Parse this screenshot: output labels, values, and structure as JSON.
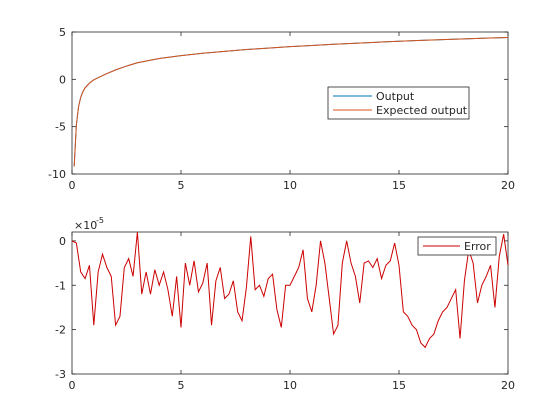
{
  "chart_data": [
    {
      "type": "line",
      "title": "",
      "xlabel": "",
      "ylabel": "",
      "xlim": [
        0,
        20
      ],
      "ylim": [
        -10,
        5
      ],
      "xticks": [
        0,
        5,
        10,
        15,
        20
      ],
      "yticks": [
        -10,
        -5,
        0,
        5
      ],
      "grid": false,
      "legend": {
        "placement": "right-center",
        "entries": [
          "Output",
          "Expected output"
        ]
      },
      "series": [
        {
          "name": "Output",
          "color": "#0072BD",
          "x": [
            0.1,
            0.2,
            0.3,
            0.4,
            0.5,
            0.6,
            0.8,
            1.0,
            1.5,
            2.0,
            2.5,
            3.0,
            4.0,
            5.0,
            6.0,
            7.0,
            8.0,
            9.0,
            10.0,
            11.0,
            12.0,
            13.0,
            14.0,
            15.0,
            16.0,
            17.0,
            18.0,
            19.0,
            20.0
          ],
          "y": [
            -9.2,
            -4.8,
            -2.9,
            -1.9,
            -1.3,
            -0.9,
            -0.4,
            -0.05,
            0.5,
            1.0,
            1.4,
            1.75,
            2.2,
            2.5,
            2.75,
            2.95,
            3.15,
            3.3,
            3.45,
            3.58,
            3.7,
            3.81,
            3.92,
            4.02,
            4.11,
            4.19,
            4.27,
            4.35,
            4.42
          ]
        },
        {
          "name": "Expected output",
          "color": "#D95319",
          "x": [
            0.1,
            0.2,
            0.3,
            0.4,
            0.5,
            0.6,
            0.8,
            1.0,
            1.5,
            2.0,
            2.5,
            3.0,
            4.0,
            5.0,
            6.0,
            7.0,
            8.0,
            9.0,
            10.0,
            11.0,
            12.0,
            13.0,
            14.0,
            15.0,
            16.0,
            17.0,
            18.0,
            19.0,
            20.0
          ],
          "y": [
            -9.2,
            -4.8,
            -2.9,
            -1.9,
            -1.3,
            -0.9,
            -0.4,
            -0.05,
            0.5,
            1.0,
            1.4,
            1.75,
            2.2,
            2.5,
            2.75,
            2.95,
            3.15,
            3.3,
            3.45,
            3.58,
            3.7,
            3.81,
            3.92,
            4.02,
            4.11,
            4.19,
            4.27,
            4.35,
            4.42
          ]
        }
      ]
    },
    {
      "type": "line",
      "title": "",
      "xlabel": "",
      "ylabel": "",
      "xlim": [
        0,
        20
      ],
      "ylim": [
        -3,
        0.2
      ],
      "xticks": [
        0,
        5,
        10,
        15,
        20
      ],
      "yticks": [
        -3,
        -2,
        -1,
        0
      ],
      "y_exponent": "×10",
      "y_exponent_power": "-5",
      "grid": false,
      "legend": {
        "placement": "top-right",
        "entries": [
          "Error"
        ]
      },
      "series": [
        {
          "name": "Error",
          "color": "#CC0000",
          "x": [
            0.0,
            0.2,
            0.4,
            0.6,
            0.8,
            1.0,
            1.2,
            1.4,
            1.6,
            1.8,
            2.0,
            2.2,
            2.4,
            2.6,
            2.8,
            3.0,
            3.2,
            3.4,
            3.6,
            3.8,
            4.0,
            4.2,
            4.4,
            4.6,
            4.8,
            5.0,
            5.2,
            5.4,
            5.6,
            5.8,
            6.0,
            6.2,
            6.4,
            6.6,
            6.8,
            7.0,
            7.2,
            7.4,
            7.6,
            7.8,
            8.0,
            8.2,
            8.4,
            8.6,
            8.8,
            9.0,
            9.2,
            9.4,
            9.6,
            9.8,
            10.0,
            10.2,
            10.4,
            10.6,
            10.8,
            11.0,
            11.2,
            11.4,
            11.6,
            11.8,
            12.0,
            12.2,
            12.4,
            12.6,
            12.8,
            13.0,
            13.2,
            13.4,
            13.6,
            13.8,
            14.0,
            14.2,
            14.4,
            14.6,
            14.8,
            15.0,
            15.2,
            15.4,
            15.6,
            15.8,
            16.0,
            16.2,
            16.4,
            16.6,
            16.8,
            17.0,
            17.2,
            17.4,
            17.6,
            17.8,
            18.0,
            18.2,
            18.4,
            18.6,
            18.8,
            19.0,
            19.2,
            19.4,
            19.6,
            19.8,
            20.0
          ],
          "y": [
            0.0,
            -0.05,
            -0.7,
            -0.85,
            -0.55,
            -1.9,
            -0.7,
            -0.3,
            -0.6,
            -0.8,
            -1.9,
            -1.7,
            -0.6,
            -0.4,
            -0.8,
            0.2,
            -1.2,
            -0.7,
            -1.2,
            -0.65,
            -1.0,
            -0.7,
            -1.1,
            -1.7,
            -0.8,
            -1.95,
            -0.5,
            -1.0,
            -0.45,
            -1.15,
            -0.95,
            -0.5,
            -1.9,
            -0.9,
            -0.6,
            -1.3,
            -1.2,
            -0.9,
            -1.6,
            -1.8,
            -1.05,
            0.1,
            -1.1,
            -1.0,
            -1.25,
            -0.85,
            -0.75,
            -1.55,
            -1.95,
            -1.0,
            -1.0,
            -0.8,
            -0.6,
            -0.2,
            -1.3,
            -1.6,
            -1.0,
            0.0,
            -0.5,
            -1.3,
            -2.1,
            -1.9,
            -0.5,
            0.0,
            -0.5,
            -0.8,
            -1.4,
            -0.5,
            -0.45,
            -0.6,
            -0.4,
            -0.85,
            -0.55,
            -0.45,
            -0.05,
            -0.55,
            -1.6,
            -1.7,
            -1.9,
            -2.0,
            -2.3,
            -2.4,
            -2.2,
            -2.1,
            -1.8,
            -1.6,
            -1.5,
            -1.3,
            -1.1,
            -2.2,
            -0.9,
            -0.2,
            -0.5,
            -1.4,
            -1.0,
            -0.8,
            -0.55,
            -1.5,
            -0.35,
            0.15,
            -0.55
          ]
        }
      ]
    }
  ]
}
